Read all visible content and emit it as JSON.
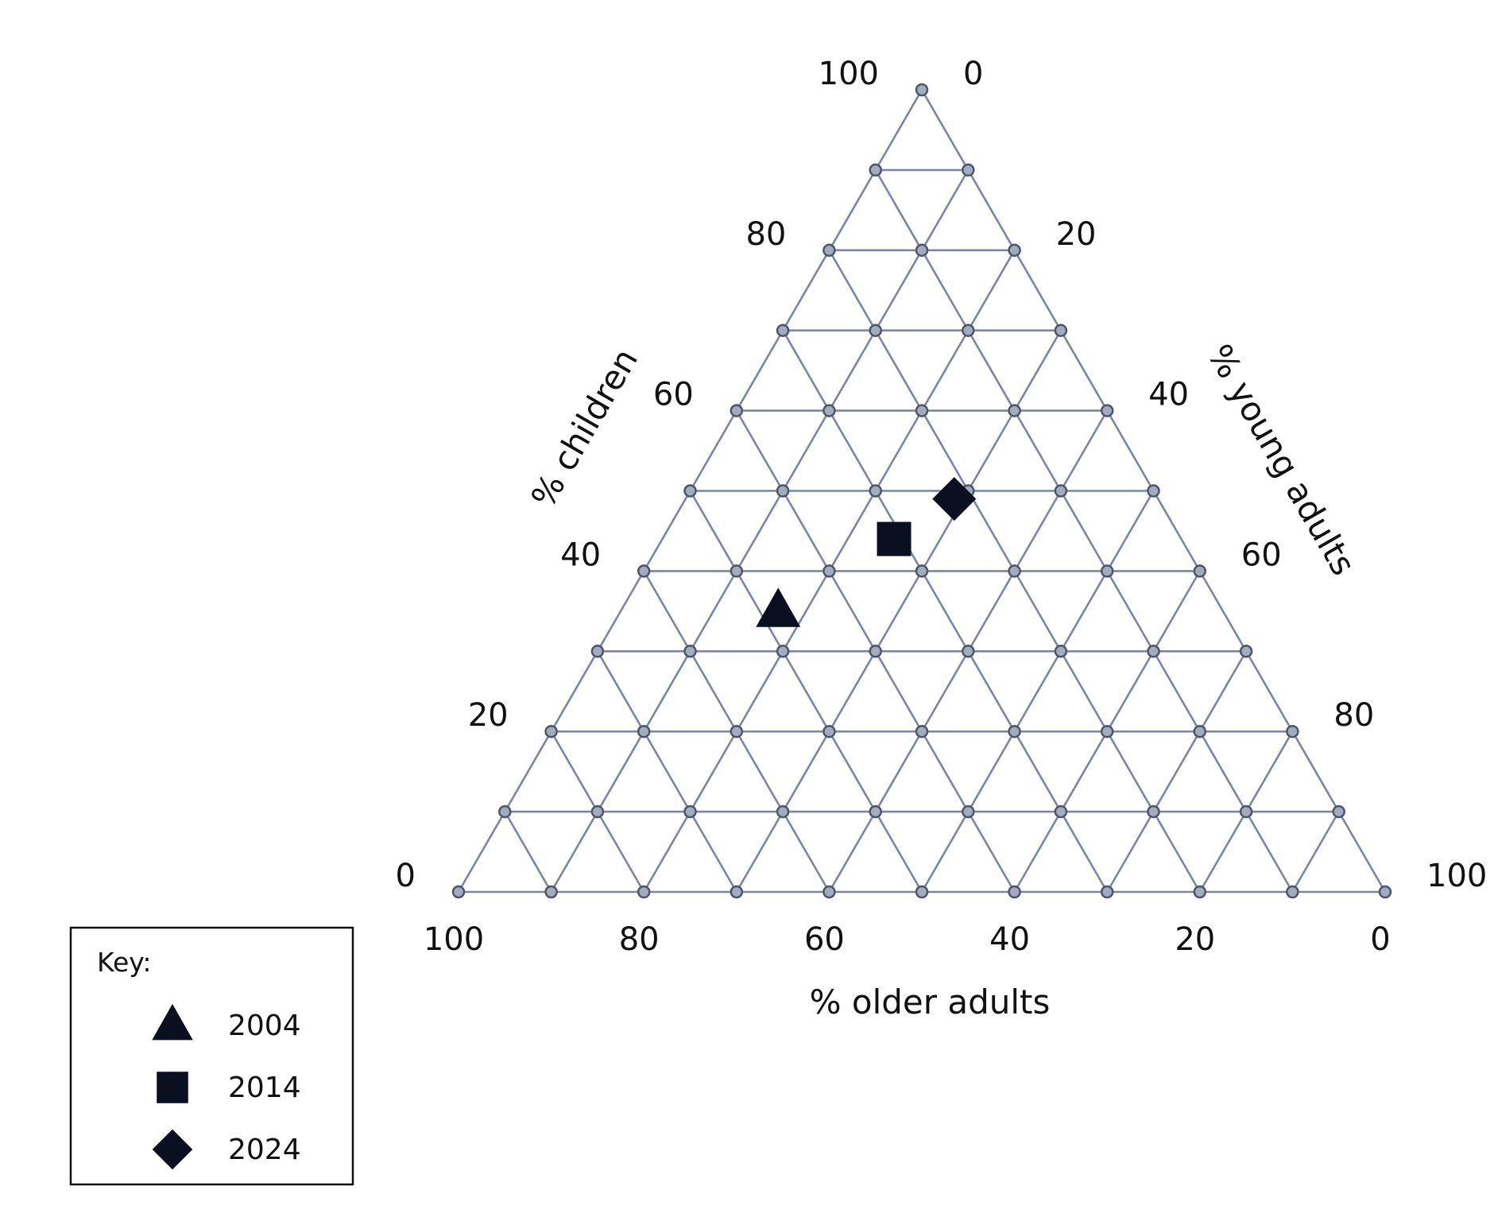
{
  "chart_data": {
    "type": "ternary",
    "axes": {
      "children": {
        "label": "% children",
        "ticks": [
          "0",
          "20",
          "40",
          "60",
          "80",
          "100"
        ]
      },
      "young_adults": {
        "label": "% young adults",
        "ticks": [
          "0",
          "20",
          "40",
          "60",
          "80",
          "100"
        ]
      },
      "older_adults": {
        "label": "% older adults",
        "ticks": [
          "100",
          "80",
          "60",
          "40",
          "20",
          "0"
        ]
      }
    },
    "grid_step": 10,
    "legend": {
      "title": "Key:",
      "position": "bottom-left"
    },
    "series": [
      {
        "name": "2004",
        "marker": "triangle",
        "children": 35,
        "young_adults": 17,
        "older_adults": 48
      },
      {
        "name": "2014",
        "marker": "square",
        "children": 44,
        "young_adults": 25,
        "older_adults": 31
      },
      {
        "name": "2024",
        "marker": "diamond",
        "children": 49,
        "young_adults": 29,
        "older_adults": 22
      }
    ],
    "colors": {
      "grid": "#7b86a3",
      "node_fill": "#a3abbf",
      "marker": "#0b1020"
    }
  }
}
